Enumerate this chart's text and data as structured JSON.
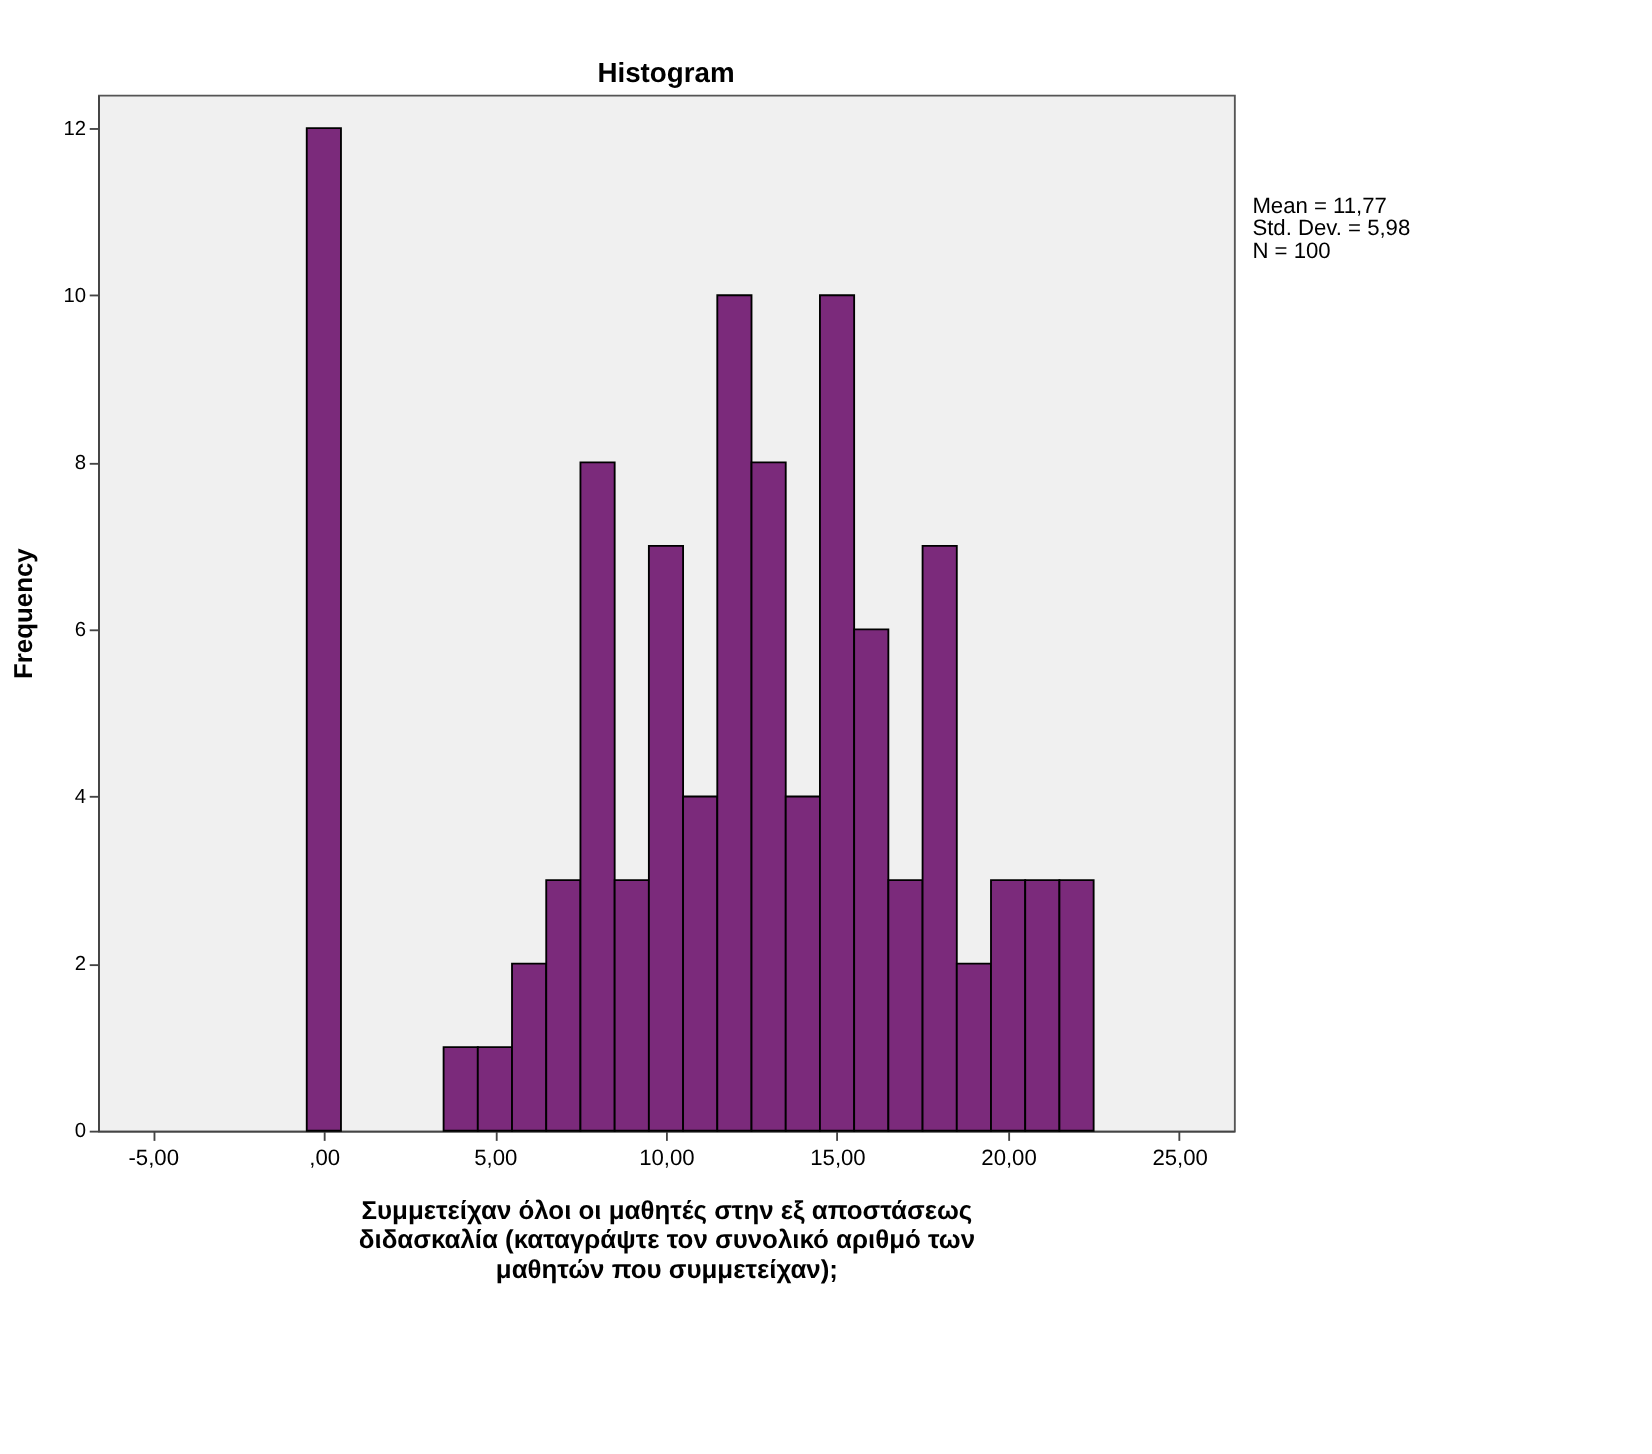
{
  "chart_data": {
    "type": "histogram",
    "title": "Histogram",
    "xlabel": "Συμμετείχαν όλοι οι μαθητές στην εξ αποστάσεως\nδιδασκαλία (καταγράψτε τον συνολικό αριθμό των\nμαθητών που συμμετείχαν);",
    "ylabel": "Frequency",
    "bins": [
      -0.5,
      0.5,
      1.5,
      2.5,
      3.5,
      4.5,
      5.5,
      6.5,
      7.5,
      8.5,
      9.5,
      10.5,
      11.5,
      12.5,
      13.5,
      14.5,
      15.5,
      16.5,
      17.5,
      18.5,
      19.5,
      20.5,
      21.5,
      22.5
    ],
    "values": [
      12,
      0,
      0,
      0,
      1,
      1,
      2,
      3,
      8,
      3,
      7,
      4,
      10,
      8,
      4,
      10,
      6,
      3,
      7,
      2,
      3,
      3,
      3
    ],
    "color": "#7b2a7b",
    "xlim": [
      -6.6,
      26.6
    ],
    "xticks": [
      {
        "value": -5,
        "label": "-5,00"
      },
      {
        "value": 0,
        "label": ",00"
      },
      {
        "value": 5,
        "label": "5,00"
      },
      {
        "value": 10,
        "label": "10,00"
      },
      {
        "value": 15,
        "label": "15,00"
      },
      {
        "value": 20,
        "label": "20,00"
      },
      {
        "value": 25,
        "label": "25,00"
      }
    ],
    "ylim": [
      0,
      12.4
    ],
    "yticks": [
      0,
      2,
      4,
      6,
      8,
      10,
      12
    ],
    "grid": false,
    "annotations": [
      "Mean = 11,77",
      "Std. Dev. = 5,98",
      "N = 100"
    ]
  }
}
